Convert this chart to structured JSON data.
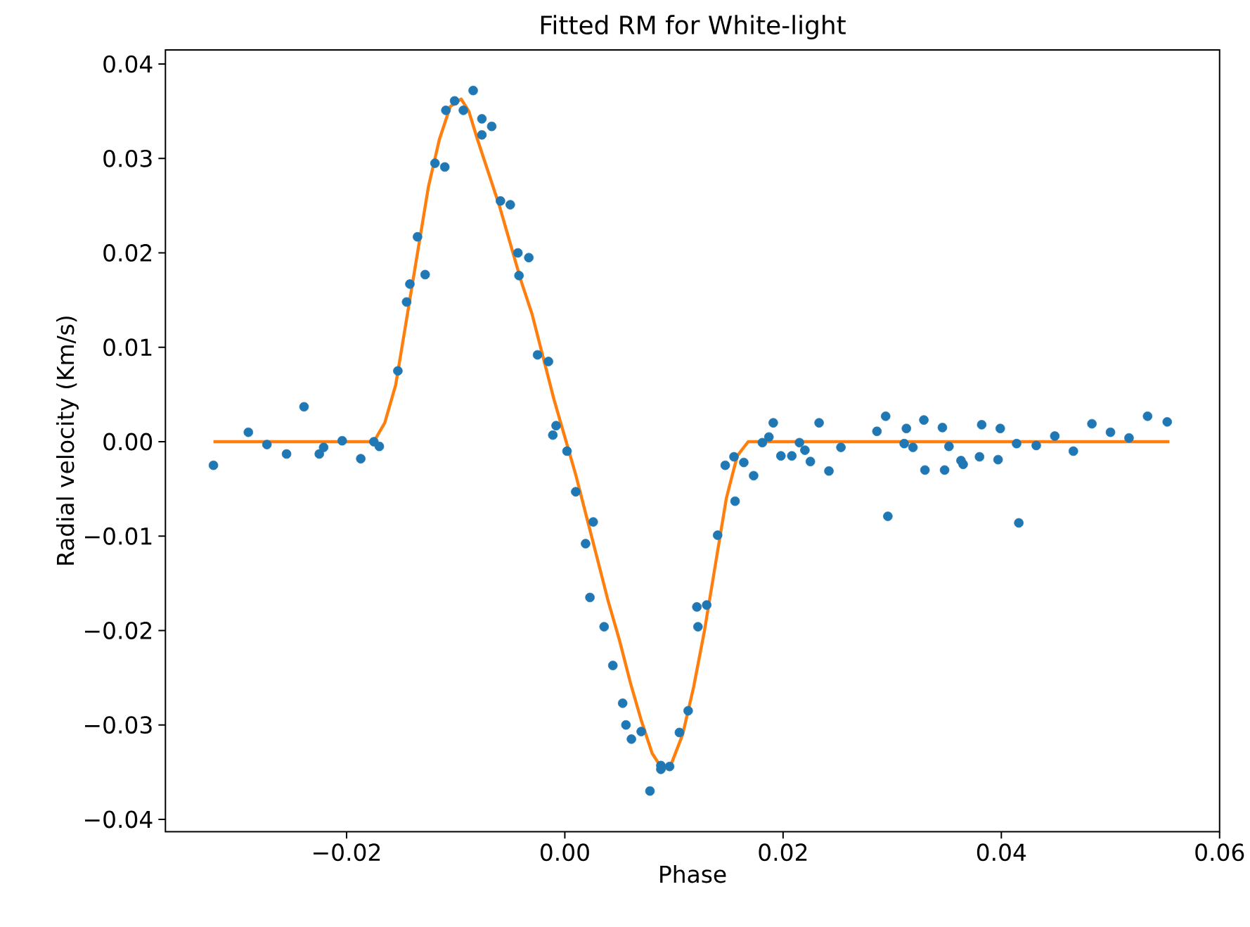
{
  "chart_data": {
    "type": "scatter",
    "title": "Fitted RM for White-light",
    "xlabel": "Phase",
    "ylabel": "Radial velocity (Km/s)",
    "xlim": [
      -0.0366,
      0.06
    ],
    "ylim": [
      -0.0413,
      0.0415
    ],
    "xticks": [
      {
        "value": -0.02,
        "label": "−0.02"
      },
      {
        "value": 0,
        "label": "0.00"
      },
      {
        "value": 0.02,
        "label": "0.02"
      },
      {
        "value": 0.04,
        "label": "0.04"
      },
      {
        "value": 0.06,
        "label": "0.06"
      }
    ],
    "yticks": [
      {
        "value": -0.04,
        "label": "−0.04"
      },
      {
        "value": -0.03,
        "label": "−0.03"
      },
      {
        "value": -0.02,
        "label": "−0.02"
      },
      {
        "value": -0.01,
        "label": "−0.01"
      },
      {
        "value": 0,
        "label": "0.00"
      },
      {
        "value": 0.01,
        "label": "0.01"
      },
      {
        "value": 0.02,
        "label": "0.02"
      },
      {
        "value": 0.03,
        "label": "0.03"
      },
      {
        "value": 0.04,
        "label": "0.04"
      }
    ],
    "series": [
      {
        "marker": "circle",
        "color": "#1f77b4",
        "x": [
          -0.0322,
          -0.029,
          -0.0273,
          -0.0255,
          -0.0239,
          -0.0225,
          -0.0221,
          -0.0204,
          -0.0187,
          -0.0175,
          -0.017,
          -0.0153,
          -0.0145,
          -0.0142,
          -0.0135,
          -0.0128,
          -0.0119,
          -0.011,
          -0.0109,
          -0.0101,
          -0.0093,
          -0.0084,
          -0.0076,
          -0.0076,
          -0.0067,
          -0.0059,
          -0.005,
          -0.0043,
          -0.0033,
          -0.0042,
          -0.0025,
          -0.0015,
          -0.0008,
          -0.0011,
          0.0002,
          0.001,
          0.0019,
          0.0026,
          0.0023,
          0.0036,
          0.0044,
          0.0053,
          0.0056,
          0.0061,
          0.007,
          0.0078,
          0.0088,
          0.0088,
          0.0096,
          0.0105,
          0.0113,
          0.0121,
          0.0122,
          0.013,
          0.014,
          0.0147,
          0.0155,
          0.0156,
          0.0164,
          0.0173,
          0.0181,
          0.0187,
          0.0191,
          0.0198,
          0.0208,
          0.0215,
          0.022,
          0.0225,
          0.0233,
          0.0242,
          0.0253,
          0.0286,
          0.0294,
          0.0296,
          0.0313,
          0.0311,
          0.0319,
          0.0329,
          0.033,
          0.0346,
          0.0348,
          0.0352,
          0.0363,
          0.0365,
          0.038,
          0.0382,
          0.0397,
          0.0399,
          0.0414,
          0.0416,
          0.0432,
          0.0449,
          0.0466,
          0.0483,
          0.05,
          0.0517,
          0.0534,
          0.0552
        ],
        "values": [
          -0.0025,
          0.001,
          -0.0003,
          -0.0013,
          0.0037,
          -0.0013,
          -0.0006,
          0.0001,
          -0.0018,
          0.0,
          -0.0005,
          0.0075,
          0.0148,
          0.0167,
          0.0217,
          0.0177,
          0.0295,
          0.0291,
          0.0351,
          0.0361,
          0.0351,
          0.0372,
          0.0342,
          0.0325,
          0.0334,
          0.0255,
          0.0251,
          0.02,
          0.0195,
          0.0176,
          0.0092,
          0.0085,
          0.0017,
          0.0007,
          -0.001,
          -0.0053,
          -0.0108,
          -0.0085,
          -0.0165,
          -0.0196,
          -0.0237,
          -0.0277,
          -0.03,
          -0.0315,
          -0.0307,
          -0.037,
          -0.0343,
          -0.0347,
          -0.0344,
          -0.0308,
          -0.0285,
          -0.0175,
          -0.0196,
          -0.0173,
          -0.0099,
          -0.0025,
          -0.0016,
          -0.0063,
          -0.0022,
          -0.0036,
          -0.0001,
          0.0005,
          0.002,
          -0.0015,
          -0.0015,
          -0.0001,
          -0.0009,
          -0.0021,
          0.002,
          -0.0031,
          -0.0006,
          0.0011,
          0.0027,
          -0.0079,
          0.0014,
          -0.0002,
          -0.0006,
          0.0023,
          -0.003,
          0.0015,
          -0.003,
          -0.0005,
          -0.002,
          -0.0024,
          -0.0016,
          0.0018,
          -0.0019,
          0.0014,
          -0.0002,
          -0.0086,
          -0.0004,
          0.0006,
          -0.001,
          0.0019,
          0.001,
          0.0004,
          0.0027,
          0.0021
        ]
      },
      {
        "type": "line",
        "marker": "none",
        "line_style": "solid",
        "color": "#ff7f0e",
        "x": [
          -0.0322,
          -0.0175,
          -0.0165,
          -0.0155,
          -0.0145,
          -0.0135,
          -0.0125,
          -0.0115,
          -0.0105,
          -0.0095,
          -0.0088,
          -0.008,
          -0.007,
          -0.006,
          -0.005,
          -0.004,
          -0.003,
          -0.002,
          -0.001,
          0.0,
          0.001,
          0.002,
          0.003,
          0.004,
          0.005,
          0.006,
          0.007,
          0.008,
          0.009,
          0.0098,
          0.0108,
          0.0118,
          0.0128,
          0.0138,
          0.0148,
          0.0158,
          0.0168,
          0.0554
        ],
        "values": [
          0,
          0,
          0.002,
          0.006,
          0.013,
          0.02,
          0.027,
          0.032,
          0.0355,
          0.0363,
          0.035,
          0.032,
          0.0285,
          0.025,
          0.021,
          0.017,
          0.0135,
          0.009,
          0.0045,
          0.0005,
          -0.0035,
          -0.008,
          -0.0125,
          -0.017,
          -0.021,
          -0.0255,
          -0.0295,
          -0.033,
          -0.0348,
          -0.034,
          -0.031,
          -0.026,
          -0.02,
          -0.013,
          -0.006,
          -0.0015,
          0,
          0
        ]
      }
    ]
  }
}
